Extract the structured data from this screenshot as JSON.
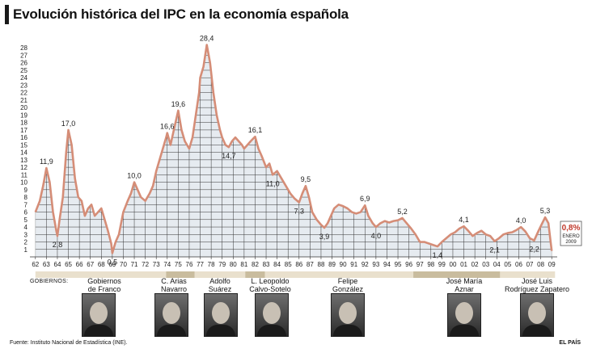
{
  "title": "Evolución histórica del IPC en la economía española",
  "chart_data": {
    "type": "area",
    "title": "Evolución histórica del IPC en la economía española",
    "xlabel": "",
    "ylabel": "",
    "ylim": [
      0,
      29
    ],
    "yticks": [
      1,
      2,
      3,
      4,
      5,
      6,
      7,
      8,
      9,
      10,
      11,
      12,
      13,
      14,
      15,
      16,
      17,
      18,
      19,
      20,
      21,
      22,
      23,
      24,
      25,
      26,
      27,
      28
    ],
    "xticks": [
      "62",
      "63",
      "64",
      "65",
      "66",
      "67",
      "68",
      "69",
      "70",
      "71",
      "72",
      "73",
      "74",
      "75",
      "76",
      "77",
      "78",
      "79",
      "80",
      "81",
      "82",
      "83",
      "84",
      "85",
      "86",
      "87",
      "88",
      "89",
      "90",
      "91",
      "92",
      "93",
      "94",
      "95",
      "96",
      "97",
      "98",
      "99",
      "00",
      "01",
      "02",
      "03",
      "04",
      "05",
      "06",
      "07",
      "08",
      "09"
    ],
    "grid": true,
    "series": [
      {
        "points": [
          [
            1962.0,
            6.0
          ],
          [
            1962.4,
            7.5
          ],
          [
            1962.7,
            9.5
          ],
          [
            1963.0,
            11.9
          ],
          [
            1963.3,
            10.0
          ],
          [
            1963.6,
            6.0
          ],
          [
            1963.9,
            3.5
          ],
          [
            1964.0,
            2.8
          ],
          [
            1964.2,
            5.0
          ],
          [
            1964.5,
            8.0
          ],
          [
            1964.8,
            14.0
          ],
          [
            1965.0,
            17.0
          ],
          [
            1965.3,
            15.0
          ],
          [
            1965.6,
            10.5
          ],
          [
            1965.9,
            8.0
          ],
          [
            1966.2,
            7.5
          ],
          [
            1966.5,
            5.5
          ],
          [
            1966.8,
            6.5
          ],
          [
            1967.1,
            7.0
          ],
          [
            1967.4,
            5.5
          ],
          [
            1967.7,
            6.0
          ],
          [
            1968.0,
            6.5
          ],
          [
            1968.3,
            5.0
          ],
          [
            1968.6,
            3.5
          ],
          [
            1968.9,
            1.8
          ],
          [
            1969.0,
            0.5
          ],
          [
            1969.3,
            2.0
          ],
          [
            1969.6,
            3.0
          ],
          [
            1970.0,
            6.0
          ],
          [
            1970.4,
            7.5
          ],
          [
            1970.7,
            8.5
          ],
          [
            1971.0,
            10.0
          ],
          [
            1971.3,
            9.0
          ],
          [
            1971.6,
            8.0
          ],
          [
            1972.0,
            7.5
          ],
          [
            1972.4,
            8.5
          ],
          [
            1972.7,
            9.5
          ],
          [
            1973.0,
            11.5
          ],
          [
            1973.3,
            13.0
          ],
          [
            1973.6,
            14.5
          ],
          [
            1973.9,
            16.0
          ],
          [
            1974.0,
            16.6
          ],
          [
            1974.3,
            15.0
          ],
          [
            1974.6,
            17.0
          ],
          [
            1975.0,
            19.6
          ],
          [
            1975.3,
            17.0
          ],
          [
            1975.6,
            15.5
          ],
          [
            1976.0,
            14.5
          ],
          [
            1976.3,
            16.0
          ],
          [
            1976.6,
            19.0
          ],
          [
            1976.9,
            22.0
          ],
          [
            1977.0,
            24.0
          ],
          [
            1977.3,
            25.5
          ],
          [
            1977.6,
            28.4
          ],
          [
            1977.9,
            26.0
          ],
          [
            1978.2,
            22.0
          ],
          [
            1978.5,
            19.0
          ],
          [
            1978.8,
            17.0
          ],
          [
            1979.0,
            16.0
          ],
          [
            1979.3,
            15.0
          ],
          [
            1979.6,
            14.7
          ],
          [
            1979.9,
            15.5
          ],
          [
            1980.2,
            16.0
          ],
          [
            1980.5,
            15.5
          ],
          [
            1980.8,
            15.0
          ],
          [
            1981.0,
            14.5
          ],
          [
            1981.3,
            15.0
          ],
          [
            1981.6,
            15.5
          ],
          [
            1982.0,
            16.1
          ],
          [
            1982.3,
            14.5
          ],
          [
            1982.6,
            13.5
          ],
          [
            1983.0,
            12.0
          ],
          [
            1983.3,
            12.5
          ],
          [
            1983.6,
            11.0
          ],
          [
            1984.0,
            11.5
          ],
          [
            1984.4,
            10.5
          ],
          [
            1984.8,
            9.5
          ],
          [
            1985.2,
            8.5
          ],
          [
            1985.6,
            7.8
          ],
          [
            1986.0,
            7.3
          ],
          [
            1986.3,
            8.5
          ],
          [
            1986.6,
            9.5
          ],
          [
            1986.9,
            8.0
          ],
          [
            1987.2,
            6.0
          ],
          [
            1987.6,
            5.0
          ],
          [
            1988.0,
            4.3
          ],
          [
            1988.3,
            3.9
          ],
          [
            1988.6,
            4.5
          ],
          [
            1988.9,
            5.5
          ],
          [
            1989.2,
            6.5
          ],
          [
            1989.6,
            7.0
          ],
          [
            1990.0,
            6.8
          ],
          [
            1990.4,
            6.5
          ],
          [
            1990.8,
            6.0
          ],
          [
            1991.2,
            5.8
          ],
          [
            1991.6,
            6.0
          ],
          [
            1992.0,
            6.9
          ],
          [
            1992.3,
            5.5
          ],
          [
            1992.7,
            4.5
          ],
          [
            1993.0,
            4.0
          ],
          [
            1993.4,
            4.5
          ],
          [
            1993.8,
            4.8
          ],
          [
            1994.2,
            4.6
          ],
          [
            1994.6,
            4.8
          ],
          [
            1995.0,
            4.9
          ],
          [
            1995.4,
            5.2
          ],
          [
            1995.8,
            4.5
          ],
          [
            1996.2,
            3.8
          ],
          [
            1996.6,
            3.0
          ],
          [
            1997.0,
            2.0
          ],
          [
            1997.4,
            2.0
          ],
          [
            1997.8,
            1.8
          ],
          [
            1998.2,
            1.6
          ],
          [
            1998.6,
            1.4
          ],
          [
            1999.0,
            2.0
          ],
          [
            1999.4,
            2.5
          ],
          [
            1999.8,
            3.0
          ],
          [
            2000.2,
            3.3
          ],
          [
            2000.6,
            3.8
          ],
          [
            2001.0,
            4.1
          ],
          [
            2001.4,
            3.5
          ],
          [
            2001.8,
            2.8
          ],
          [
            2002.2,
            3.2
          ],
          [
            2002.6,
            3.5
          ],
          [
            2003.0,
            3.0
          ],
          [
            2003.4,
            2.8
          ],
          [
            2003.8,
            2.1
          ],
          [
            2004.2,
            2.5
          ],
          [
            2004.6,
            3.0
          ],
          [
            2005.0,
            3.2
          ],
          [
            2005.4,
            3.3
          ],
          [
            2005.8,
            3.6
          ],
          [
            2006.2,
            4.0
          ],
          [
            2006.6,
            3.4
          ],
          [
            2007.0,
            2.5
          ],
          [
            2007.4,
            2.2
          ],
          [
            2007.8,
            3.5
          ],
          [
            2008.1,
            4.4
          ],
          [
            2008.4,
            5.3
          ],
          [
            2008.7,
            4.5
          ],
          [
            2008.9,
            2.0
          ],
          [
            2009.0,
            0.8
          ]
        ]
      }
    ],
    "annotations": [
      {
        "x": 1963.0,
        "y": 11.9,
        "text": "11,9"
      },
      {
        "x": 1964.0,
        "y": 2.8,
        "text": "2,8"
      },
      {
        "x": 1965.0,
        "y": 17.0,
        "text": "17,0"
      },
      {
        "x": 1969.0,
        "y": 0.5,
        "text": "0,5"
      },
      {
        "x": 1971.0,
        "y": 10.0,
        "text": "10,0"
      },
      {
        "x": 1974.0,
        "y": 16.6,
        "text": "16,6"
      },
      {
        "x": 1975.0,
        "y": 19.6,
        "text": "19,6"
      },
      {
        "x": 1977.6,
        "y": 28.4,
        "text": "28,4"
      },
      {
        "x": 1979.6,
        "y": 14.7,
        "text": "14,7"
      },
      {
        "x": 1982.0,
        "y": 16.1,
        "text": "16,1"
      },
      {
        "x": 1983.6,
        "y": 11.0,
        "text": "11,0"
      },
      {
        "x": 1986.0,
        "y": 7.3,
        "text": "7,3"
      },
      {
        "x": 1986.6,
        "y": 9.5,
        "text": "9,5"
      },
      {
        "x": 1988.3,
        "y": 3.9,
        "text": "3,9"
      },
      {
        "x": 1992.0,
        "y": 6.9,
        "text": "6,9"
      },
      {
        "x": 1993.0,
        "y": 4.0,
        "text": "4,0"
      },
      {
        "x": 1995.4,
        "y": 5.2,
        "text": "5,2"
      },
      {
        "x": 1998.6,
        "y": 1.4,
        "text": "1,4"
      },
      {
        "x": 2001.0,
        "y": 4.1,
        "text": "4,1"
      },
      {
        "x": 2003.8,
        "y": 2.1,
        "text": "2,1"
      },
      {
        "x": 2006.2,
        "y": 4.0,
        "text": "4,0"
      },
      {
        "x": 2007.4,
        "y": 2.2,
        "text": "2,2"
      },
      {
        "x": 2008.4,
        "y": 5.3,
        "text": "5,3"
      }
    ],
    "callout": {
      "value": "0,8%",
      "line1": "ENERO",
      "line2": "2009"
    }
  },
  "governments": {
    "label": "GOBIERNOS:",
    "items": [
      {
        "name": "Gobiernos\nde Franco",
        "start": 1962,
        "end": 1975.9
      },
      {
        "name": "C. Arias\nNavarro",
        "start": 1973.9,
        "end": 1976.5
      },
      {
        "name": "Adolfo\nSuárez",
        "start": 1976.5,
        "end": 1981.1
      },
      {
        "name": "L. Leopoldo\nCalvo-Sotelo",
        "start": 1981.1,
        "end": 1982.9
      },
      {
        "name": "Felipe\nGonzález",
        "start": 1982.9,
        "end": 1996.4
      },
      {
        "name": "José María\nAznar",
        "start": 1996.4,
        "end": 2004.3
      },
      {
        "name": "José Luis\nRodríguez Zapatero",
        "start": 2004.3,
        "end": 2009.3
      }
    ]
  },
  "colors": {
    "line": "#d58d77",
    "fill": "#e6ebf0",
    "grid": "#333333",
    "gov_band": "#e9e0cd",
    "gov_band_alt": "#c9bc9e"
  },
  "footer": {
    "source": "Fuente: Instituto Nacional de Estadística (INE).",
    "brand": "EL PAÍS"
  }
}
